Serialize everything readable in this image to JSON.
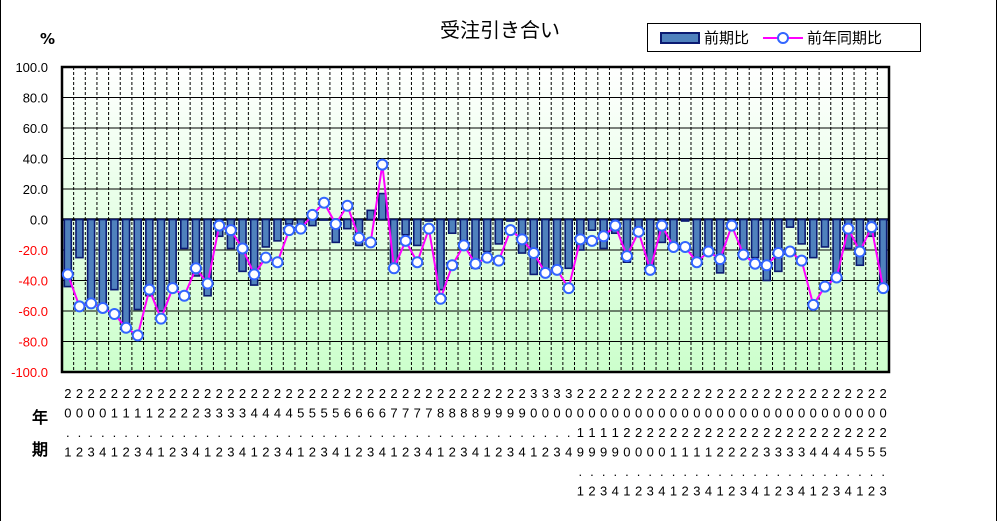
{
  "chart_data": {
    "type": "bar",
    "title": "受注引き合い",
    "unit_label": "%",
    "xlabel_rows": [
      "年",
      "期"
    ],
    "ylabel": "%",
    "ylim": [
      -100,
      100
    ],
    "ytick_step": 20,
    "yticks": [
      "100.0",
      "80.0",
      "60.0",
      "40.0",
      "20.0",
      "0.0",
      "-20.0",
      "-40.0",
      "-60.0",
      "-80.0",
      "-100.0"
    ],
    "grid": true,
    "legend_position": "top-right",
    "categories": [
      "20.1",
      "20.2",
      "20.3",
      "20.4",
      "21.1",
      "21.2",
      "21.3",
      "21.4",
      "22.1",
      "22.2",
      "22.3",
      "22.4",
      "23.1",
      "23.2",
      "23.3",
      "23.4",
      "24.1",
      "24.2",
      "24.3",
      "24.4",
      "25.1",
      "25.2",
      "25.3",
      "25.4",
      "26.1",
      "26.2",
      "26.3",
      "26.4",
      "27.1",
      "27.2",
      "27.3",
      "27.4",
      "28.1",
      "28.2",
      "28.3",
      "28.4",
      "29.1",
      "29.2",
      "29.3",
      "29.4",
      "30.1",
      "30.2",
      "30.3",
      "30.4",
      "2019.1",
      "2019.2",
      "2019.3",
      "2019.4",
      "2020.1",
      "2020.2",
      "2020.3",
      "2020.4",
      "2021.1",
      "2021.2",
      "2021.3",
      "2021.4",
      "2022.1",
      "2022.2",
      "2022.3",
      "2022.4",
      "2023.1",
      "2023.2",
      "2023.3",
      "2023.4",
      "2024.1",
      "2024.2",
      "2024.3",
      "2024.4",
      "2025.1",
      "2025.2",
      "2025.3"
    ],
    "series": [
      {
        "name": "前期比",
        "kind": "bar",
        "color": "#4f81bd",
        "edge_color": "#0b1a72",
        "values": [
          -44,
          -25,
          -57,
          -59,
          -46,
          -68,
          -59,
          -50,
          -60,
          -46,
          -19,
          -37,
          -50,
          -11,
          -19,
          -34,
          -43,
          -18,
          -14,
          -3,
          -3,
          -4,
          0,
          -15,
          -6,
          -17,
          6,
          17,
          -32,
          -10,
          -17,
          -1,
          -46,
          -9,
          -18,
          -32,
          -21,
          -16,
          -1,
          -22,
          -36,
          -35,
          -33,
          -32,
          -20,
          -7,
          -19,
          -9,
          -28,
          -5,
          -32,
          -15,
          -15,
          -1,
          -25,
          -22,
          -35,
          -2,
          -21,
          -25,
          -40,
          -34,
          -5,
          -16,
          -25,
          -18,
          -36,
          -19,
          -30,
          -11,
          -46
        ]
      },
      {
        "name": "前年同期比",
        "kind": "line",
        "color": "#ff00ff",
        "marker_color": "#3366ff",
        "values": [
          -36,
          -57,
          -55,
          -58,
          -62,
          -71,
          -76,
          -46,
          -65,
          -45,
          -50,
          -32,
          -42,
          -4,
          -7,
          -19,
          -36,
          -25,
          -28,
          -7,
          -6,
          3,
          11,
          -3,
          9,
          -12,
          -15,
          36,
          -32,
          -14,
          -28,
          -6,
          -52,
          -30,
          -17,
          -29,
          -25,
          -27,
          -7,
          -13,
          -22,
          -35,
          -33,
          -45,
          -13,
          -14,
          -11,
          -4,
          -24,
          -8,
          -33,
          -4,
          -18,
          -18,
          -28,
          -21,
          -26,
          -4,
          -23,
          -29,
          -30,
          -22,
          -21,
          -27,
          -56,
          -44,
          -38,
          -6,
          -21,
          -5,
          -45
        ]
      }
    ],
    "colors": {
      "negative_tick_label": "#ff0000",
      "positive_tick_label": "#000000",
      "plot_bg_top": "#ffffff",
      "plot_bg_bottom": "#ccffcc"
    }
  }
}
